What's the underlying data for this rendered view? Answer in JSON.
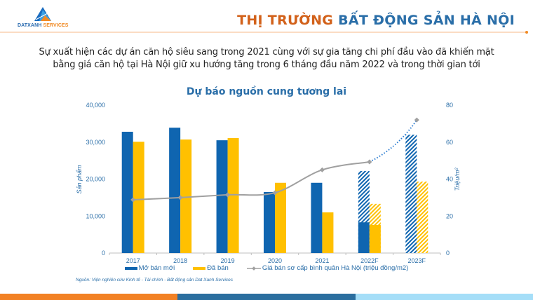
{
  "header": {
    "logo": {
      "brand_primary": "DATXANH",
      "brand_secondary": "SERVICES"
    },
    "title_part1": "THỊ TRƯỜNG",
    "title_part2": "BẤT ĐỘNG SẢN HÀ NỘI"
  },
  "intro_text": "Sự xuất hiện các dự án căn hộ siêu sang trong 2021 cùng với sự gia tăng chi phí đầu vào đã khiến mặt bằng giá căn hộ tại Hà Nội giữ xu hướng tăng trong 6 tháng đầu năm 2022 và trong thời gian tới",
  "chart_data": {
    "type": "bar",
    "title": "Dự báo nguồn cung tương lai",
    "categories": [
      "2017",
      "2018",
      "2019",
      "2020",
      "2021",
      "2022F",
      "2023F"
    ],
    "ylabel": "Sản phẩm",
    "ylabel_right": "Triệu/m²",
    "ylim": [
      0,
      40000
    ],
    "ylim_right": [
      0,
      80
    ],
    "yticks": [
      "0",
      "10,000",
      "20,000",
      "30,000",
      "40,000"
    ],
    "yticks_right": [
      "0",
      "20",
      "40",
      "60",
      "80"
    ],
    "grid": false,
    "legend_position": "bottom",
    "series": [
      {
        "name": "Mở bán mới",
        "type": "bar",
        "axis": "left",
        "color": "#0f65b0",
        "values": [
          32800,
          33900,
          30500,
          16500,
          19000,
          22200,
          32000
        ],
        "actual_portion": [
          32800,
          33900,
          30500,
          16500,
          19000,
          8300,
          0
        ],
        "forecast_hatched": [
          false,
          false,
          false,
          false,
          false,
          true,
          true
        ]
      },
      {
        "name": "Đã bán",
        "type": "bar",
        "axis": "left",
        "color": "#ffc000",
        "values": [
          30100,
          30700,
          31100,
          19000,
          11000,
          13300,
          19300
        ],
        "actual_portion": [
          30100,
          30700,
          31100,
          19000,
          11000,
          7600,
          0
        ],
        "forecast_hatched": [
          false,
          false,
          false,
          false,
          false,
          true,
          true
        ]
      },
      {
        "name": "Giá bán sơ cấp bình quân Hà Nội (triệu đồng/m2)",
        "type": "line",
        "axis": "right",
        "color": "#a0a0a0",
        "forecast_color": "#2a7bd0",
        "values": [
          28.8,
          30.0,
          31.5,
          32.6,
          45.0,
          49.3,
          72.0
        ]
      }
    ]
  },
  "legend": {
    "items": [
      "Mở bán mới",
      "Đã bán",
      "Giá bán sơ cấp bình quân Hà Nội (triệu đồng/m2)"
    ]
  },
  "source_note": "Nguồn: Viện nghiên cứu Kinh tế - Tài chính - Bất động sản Dat Xanh Services",
  "colors": {
    "blue": "#0f65b0",
    "yellow": "#ffc000",
    "line_gray": "#a0a0a0",
    "title_orange": "#d2611a",
    "title_blue": "#2a6ea8",
    "footer": [
      "#f28125",
      "#2b6e9f",
      "#a5def8"
    ]
  }
}
